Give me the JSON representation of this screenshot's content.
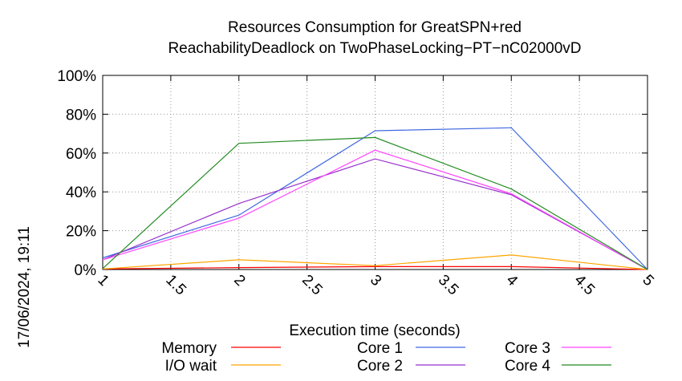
{
  "chart_data": {
    "type": "line",
    "title_lines": [
      "Resources Consumption for GreatSPN+red",
      "ReachabilityDeadlock on TwoPhaseLocking−PT−nC02000vD"
    ],
    "xlabel": "Execution time (seconds)",
    "ylabel": "",
    "side_label": "17/06/2024, 19:11",
    "xlim": [
      1,
      5
    ],
    "ylim": [
      0,
      100
    ],
    "x_ticks": [
      "1",
      "1.5",
      "2",
      "2.5",
      "3",
      "3.5",
      "4",
      "4.5",
      "5"
    ],
    "y_ticks": [
      "0%",
      "20%",
      "40%",
      "60%",
      "80%",
      "100%"
    ],
    "grid": true,
    "legend_position": "bottom",
    "x": [
      1,
      2,
      3,
      4,
      5
    ],
    "series": [
      {
        "name": "Memory",
        "color": "#ff0000",
        "values": [
          0.3,
          1.0,
          1.5,
          1.5,
          0
        ]
      },
      {
        "name": "I/O wait",
        "color": "#ffa500",
        "values": [
          0.3,
          5,
          2,
          7.5,
          0
        ]
      },
      {
        "name": "Core 1",
        "color": "#4169e1",
        "values": [
          6,
          28,
          71.5,
          73,
          0
        ]
      },
      {
        "name": "Core 2",
        "color": "#9932cc",
        "values": [
          5,
          34,
          57,
          38.5,
          0
        ]
      },
      {
        "name": "Core 3",
        "color": "#ff44ff",
        "values": [
          5,
          26.5,
          61.5,
          39,
          0
        ]
      },
      {
        "name": "Core 4",
        "color": "#228b22",
        "values": [
          0.5,
          65,
          68,
          41.5,
          0
        ]
      }
    ]
  }
}
